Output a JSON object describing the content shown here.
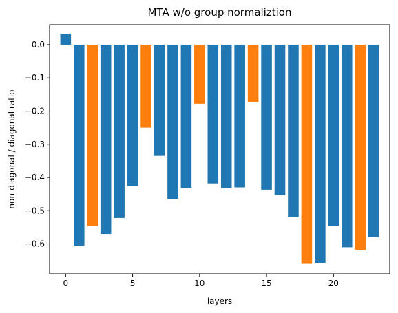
{
  "chart_data": {
    "type": "bar",
    "title": "MTA w/o group normaliztion",
    "xlabel": "layers",
    "ylabel": "non-diagonal / diagonal ratio",
    "x": [
      0,
      1,
      2,
      3,
      4,
      5,
      6,
      7,
      8,
      9,
      10,
      11,
      12,
      13,
      14,
      15,
      16,
      17,
      18,
      19,
      20,
      21,
      22,
      23
    ],
    "values": [
      0.033,
      -0.605,
      -0.545,
      -0.57,
      -0.522,
      -0.425,
      -0.25,
      -0.335,
      -0.465,
      -0.432,
      -0.178,
      -0.418,
      -0.433,
      -0.43,
      -0.173,
      -0.437,
      -0.452,
      -0.52,
      -0.66,
      -0.658,
      -0.545,
      -0.61,
      -0.618,
      -0.58
    ],
    "highlight_indices": [
      2,
      6,
      10,
      14,
      18,
      22
    ],
    "colors": {
      "default": "#1f77b4",
      "highlight": "#ff7f0e"
    },
    "xlim": [
      -1.2,
      24.2
    ],
    "ylim": [
      -0.69,
      0.06
    ],
    "xticks": [
      0,
      5,
      10,
      15,
      20
    ],
    "xtick_labels": [
      "0",
      "5",
      "10",
      "15",
      "20"
    ],
    "yticks": [
      0.0,
      -0.1,
      -0.2,
      -0.3,
      -0.4,
      -0.5,
      -0.6
    ],
    "ytick_labels": [
      "0.0",
      "−0.1",
      "−0.2",
      "−0.3",
      "−0.4",
      "−0.5",
      "−0.6"
    ],
    "grid": false
  }
}
